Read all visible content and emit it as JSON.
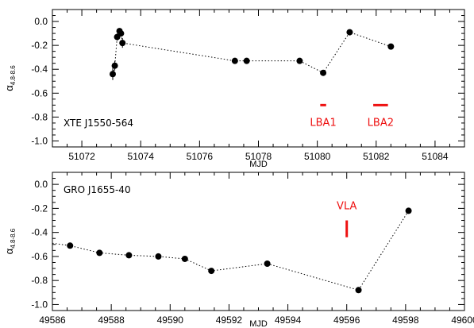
{
  "chart_data": [
    {
      "type": "scatter",
      "title": "",
      "xlabel": "MJD",
      "ylabel_main": "α",
      "ylabel_sub": "4.8-8.6",
      "xlim": [
        51071.0,
        51085.0
      ],
      "ylim": [
        -1.05,
        0.1
      ],
      "xticks": [
        51072,
        51074,
        51076,
        51078,
        51080,
        51082,
        51084
      ],
      "yticks": [
        0.0,
        -0.2,
        -0.4,
        -0.6,
        -0.8,
        -1.0
      ],
      "ytick_labels": [
        "0.0",
        "-0.2",
        "-0.4",
        "-0.6",
        "-0.8",
        "-1.0"
      ],
      "annotation": "XTE J1550-564",
      "connected": true,
      "points": [
        {
          "x": 51073.05,
          "y": -0.44,
          "err": 0.05
        },
        {
          "x": 51073.12,
          "y": -0.37,
          "err": 0.04
        },
        {
          "x": 51073.2,
          "y": -0.13,
          "err": 0.03
        },
        {
          "x": 51073.28,
          "y": -0.08,
          "err": 0.02
        },
        {
          "x": 51073.33,
          "y": -0.1,
          "err": 0.02
        },
        {
          "x": 51073.38,
          "y": -0.18,
          "err": 0.04
        },
        {
          "x": 51077.2,
          "y": -0.33,
          "err": 0.01
        },
        {
          "x": 51077.6,
          "y": -0.33,
          "err": 0.02
        },
        {
          "x": 51079.4,
          "y": -0.33,
          "err": 0.01
        },
        {
          "x": 51080.2,
          "y": -0.43,
          "err": 0.01
        },
        {
          "x": 51081.1,
          "y": -0.09,
          "err": 0.01
        },
        {
          "x": 51082.5,
          "y": -0.21,
          "err": 0.01
        }
      ],
      "markers": [
        {
          "label": "LBA1",
          "x0": 51080.1,
          "x1": 51080.3,
          "y": -0.7,
          "orientation": "horizontal",
          "color": "#ee1111"
        },
        {
          "label": "LBA2",
          "x0": 51081.9,
          "x1": 51082.4,
          "y": -0.7,
          "orientation": "horizontal",
          "color": "#ee1111"
        }
      ]
    },
    {
      "type": "scatter",
      "title": "",
      "xlabel": "MJD",
      "ylabel_main": "α",
      "ylabel_sub": "4.8-8.6",
      "xlim": [
        49586.0,
        49600.0
      ],
      "ylim": [
        -1.05,
        0.1
      ],
      "xticks": [
        49586,
        49588,
        49590,
        49592,
        49594,
        49596,
        49598,
        49600
      ],
      "yticks": [
        0.0,
        -0.2,
        -0.4,
        -0.6,
        -0.8,
        -1.0
      ],
      "ytick_labels": [
        "0.0",
        "-0.2",
        "-0.4",
        "-0.6",
        "-0.8",
        "-1.0"
      ],
      "annotation": "GRO J1655-40",
      "connected": true,
      "start_dotted_from_x": 49586.0,
      "start_dotted_from_y": -0.49,
      "points": [
        {
          "x": 49586.6,
          "y": -0.51,
          "err": 0.0
        },
        {
          "x": 49587.6,
          "y": -0.57,
          "err": 0.0
        },
        {
          "x": 49588.6,
          "y": -0.59,
          "err": 0.0
        },
        {
          "x": 49589.6,
          "y": -0.6,
          "err": 0.0
        },
        {
          "x": 49590.5,
          "y": -0.62,
          "err": 0.0
        },
        {
          "x": 49591.4,
          "y": -0.72,
          "err": 0.0
        },
        {
          "x": 49593.3,
          "y": -0.66,
          "err": 0.0
        },
        {
          "x": 49596.4,
          "y": -0.88,
          "err": 0.0
        },
        {
          "x": 49598.1,
          "y": -0.22,
          "err": 0.0
        }
      ],
      "markers": [
        {
          "label": "VLA",
          "x": 49596.0,
          "y0": -0.3,
          "y1": -0.44,
          "orientation": "vertical",
          "color": "#ee1111"
        }
      ]
    }
  ]
}
